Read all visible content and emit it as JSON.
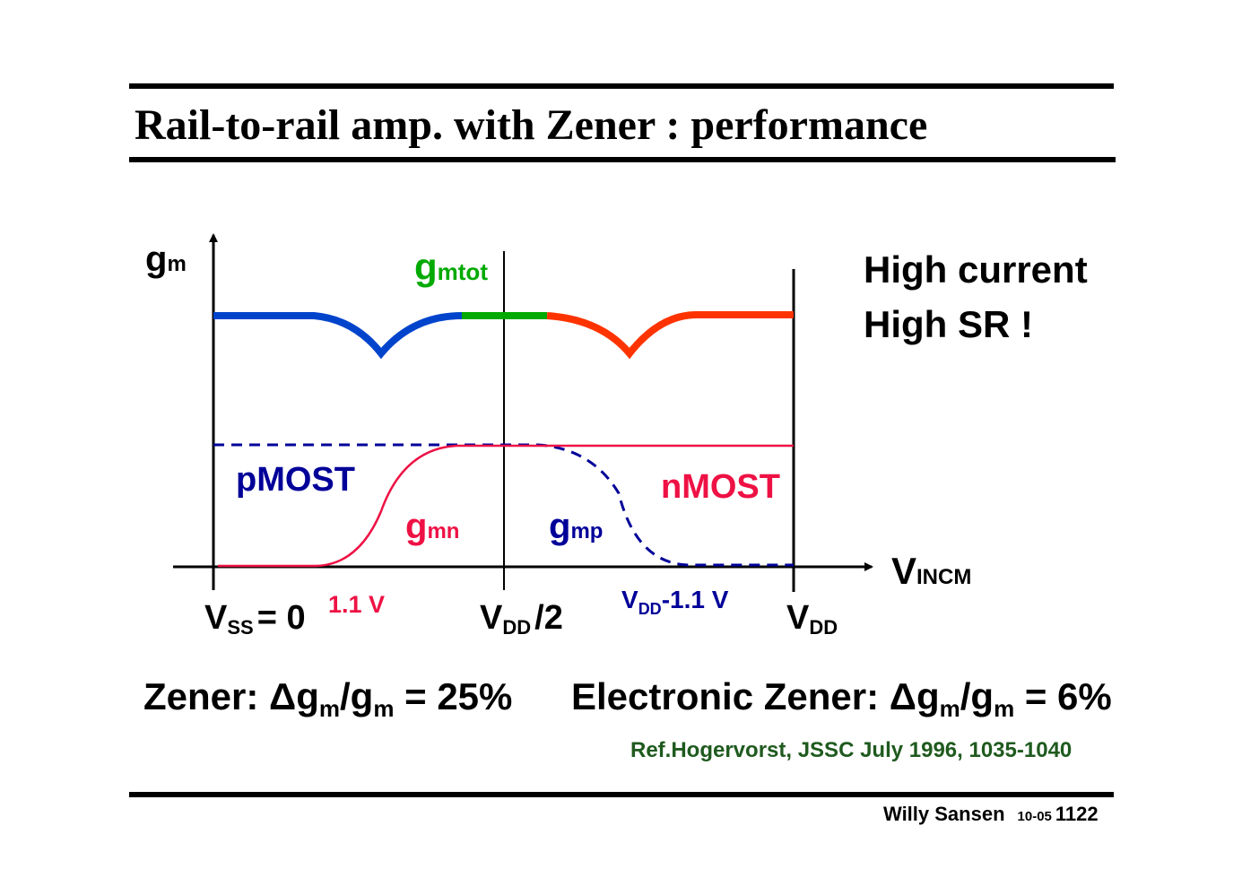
{
  "title": "Rail-to-rail amp. with Zener : performance",
  "diagram": {
    "y_axis_label": {
      "base": "g",
      "sub": "m"
    },
    "x_axis_label": {
      "base": "V",
      "sub": "INCM"
    },
    "gmtot_label": {
      "base": "g",
      "sub": "mtot"
    },
    "gmn_label": {
      "base": "g",
      "sub": "mn"
    },
    "gmp_label": {
      "base": "g",
      "sub": "mp"
    },
    "pmost_label": "pMOST",
    "nmost_label": "nMOST",
    "tick_vss": {
      "base": "V",
      "sub": "SS",
      "rest": "= 0"
    },
    "tick_1v1": "1.1 V",
    "tick_vdd_half": {
      "base": "V",
      "sub": "DD",
      "rest": "/2"
    },
    "tick_vdd_minus": {
      "base": "V",
      "sub": "DD",
      "rest": "-1.1 V"
    },
    "tick_vdd": {
      "base": "V",
      "sub": "DD"
    },
    "colors": {
      "gmp_curve": "#000099",
      "gmn_curve": "#ee1144",
      "total_p_region": "#0044cc",
      "total_mid_region": "#00aa00",
      "total_n_region": "#ff3300"
    }
  },
  "notes": {
    "line1": "High current",
    "line2": "High SR !"
  },
  "formula": {
    "zener_prefix": "Zener: Δg",
    "zener_sub1": "m",
    "zener_mid": "/g",
    "zener_sub2": "m",
    "zener_value": " = 25%",
    "elec_prefix": "Electronic Zener: Δg",
    "elec_sub1": "m",
    "elec_mid": "/g",
    "elec_sub2": "m",
    "elec_value": " = 6%"
  },
  "reference": "Ref.Hogervorst, JSSC  July 1996, 1035-1040",
  "footer": {
    "author": "Willy Sansen",
    "code": "10-05",
    "page": "1122"
  }
}
